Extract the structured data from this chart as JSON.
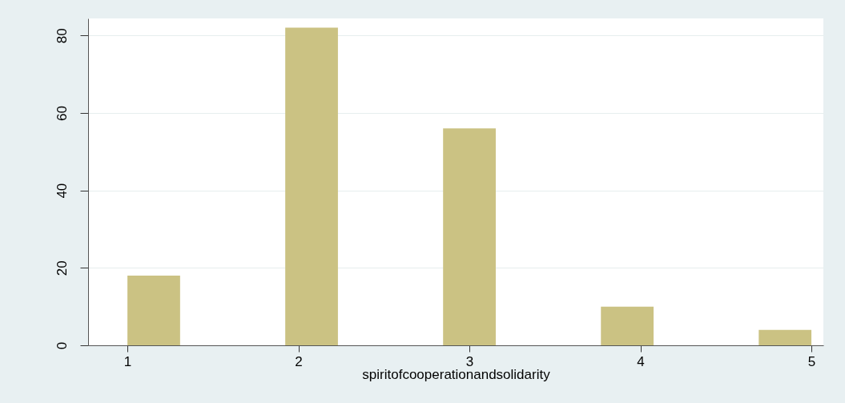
{
  "chart_data": {
    "type": "histogram",
    "xlabel": "spiritofcooperationandsolidarity",
    "bins": [
      1,
      1.308,
      1.615,
      1.923,
      2.231,
      2.538,
      2.846,
      3.154,
      3.462,
      3.769,
      4.077,
      4.385,
      4.692,
      5
    ],
    "values": [
      18,
      0,
      0,
      82,
      0,
      0,
      56,
      0,
      0,
      10,
      0,
      0,
      4
    ],
    "color": "#cbc283",
    "xlim": [
      0.77,
      5.07
    ],
    "xticks": [
      1,
      2,
      3,
      4,
      5
    ],
    "ylim": [
      0,
      84.4
    ],
    "yticks": [
      0,
      20,
      40,
      60,
      80
    ],
    "grid": "y"
  }
}
